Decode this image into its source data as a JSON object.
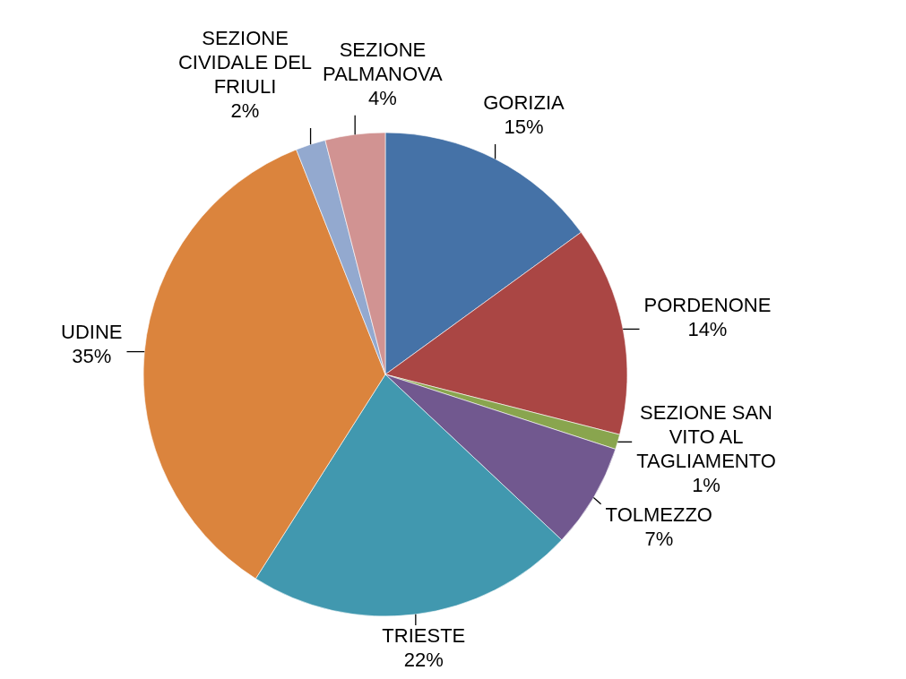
{
  "chart_data": {
    "type": "pie",
    "categories": [
      "GORIZIA",
      "PORDENONE",
      "SEZIONE SAN VITO AL TAGLIAMENTO",
      "TOLMEZZO",
      "TRIESTE",
      "UDINE",
      "SEZIONE CIVIDALE DEL FRIULI",
      "SEZIONE PALMANOVA"
    ],
    "values": [
      15,
      14,
      1,
      7,
      22,
      35,
      2,
      4
    ],
    "colors": [
      "#4572a7",
      "#aa4644",
      "#89a54e",
      "#71588f",
      "#4198af",
      "#db843d",
      "#93a9cf",
      "#d19392"
    ],
    "value_labels": [
      "15%",
      "14%",
      "1%",
      "7%",
      "22%",
      "35%",
      "2%",
      "4%"
    ]
  }
}
